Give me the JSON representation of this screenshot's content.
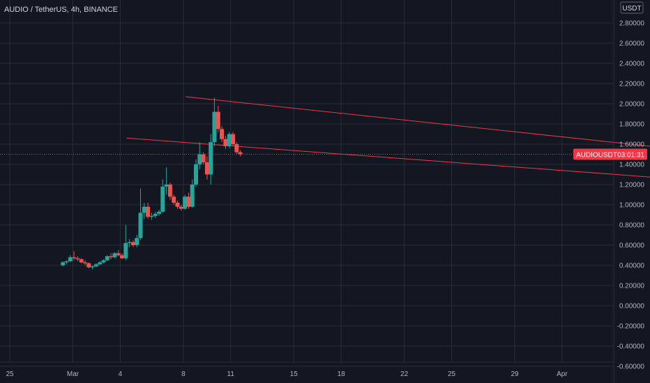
{
  "header": {
    "title": "AUDIO / TetherUS, 4h, BINANCE"
  },
  "price_axis": {
    "currency": "USDT",
    "tick_labels": [
      "2.80000",
      "2.60000",
      "2.40000",
      "2.20000",
      "2.00000",
      "1.80000",
      "1.60000",
      "1.40000",
      "1.20000",
      "1.00000",
      "0.80000",
      "0.60000",
      "0.40000",
      "0.20000",
      "0.00000",
      "-0.20000",
      "-0.40000",
      "-0.60000"
    ]
  },
  "price_tag": {
    "symbol": "AUDIOUSDT",
    "countdown": "03:01:31",
    "color": "#f23645"
  },
  "colors": {
    "up": "#26a69a",
    "down": "#ef5350",
    "channel": "#f23645",
    "background": "#131722",
    "grid": "#2a2e39"
  },
  "chart_data": {
    "type": "candlestick",
    "title": "AUDIO / TetherUS, 4h, BINANCE",
    "interval": "4h",
    "exchange": "BINANCE",
    "ylim": [
      -0.7,
      2.9
    ],
    "y_ticks": [
      2.8,
      2.6,
      2.4,
      2.2,
      2.0,
      1.8,
      1.6,
      1.4,
      1.2,
      1.0,
      0.8,
      0.6,
      0.4,
      0.2,
      0.0,
      -0.2,
      -0.4,
      -0.6
    ],
    "x_tick_labels": [
      "25",
      "Mar",
      "4",
      "8",
      "11",
      "15",
      "18",
      "22",
      "25",
      "29",
      "Apr"
    ],
    "x_tick_dates": [
      "2021-02-25",
      "2021-03-01",
      "2021-03-04",
      "2021-03-08",
      "2021-03-11",
      "2021-03-15",
      "2021-03-18",
      "2021-03-22",
      "2021-03-25",
      "2021-03-29",
      "2021-04-01"
    ],
    "grid": true,
    "last_price": 1.5,
    "channel_upper": [
      [
        1.35,
        2.07
      ],
      [
        5.0,
        1.5
      ]
    ],
    "channel_lower": [
      [
        0.95,
        1.66
      ],
      [
        4.9,
        1.23
      ]
    ],
    "candles": [
      {
        "t": -8.0,
        "o": 0.4,
        "h": 0.44,
        "l": 0.39,
        "c": 0.43
      },
      {
        "t": -7.5,
        "o": 0.43,
        "h": 0.45,
        "l": 0.41,
        "c": 0.44
      },
      {
        "t": -7.0,
        "o": 0.44,
        "h": 0.5,
        "l": 0.43,
        "c": 0.48
      },
      {
        "t": -6.5,
        "o": 0.48,
        "h": 0.54,
        "l": 0.45,
        "c": 0.47
      },
      {
        "t": -6.0,
        "o": 0.47,
        "h": 0.49,
        "l": 0.44,
        "c": 0.46
      },
      {
        "t": -5.5,
        "o": 0.46,
        "h": 0.47,
        "l": 0.42,
        "c": 0.43
      },
      {
        "t": -5.0,
        "o": 0.43,
        "h": 0.45,
        "l": 0.4,
        "c": 0.42
      },
      {
        "t": -4.5,
        "o": 0.42,
        "h": 0.43,
        "l": 0.37,
        "c": 0.38
      },
      {
        "t": -4.0,
        "o": 0.38,
        "h": 0.4,
        "l": 0.36,
        "c": 0.39
      },
      {
        "t": -3.5,
        "o": 0.39,
        "h": 0.42,
        "l": 0.38,
        "c": 0.41
      },
      {
        "t": -3.0,
        "o": 0.41,
        "h": 0.44,
        "l": 0.4,
        "c": 0.43
      },
      {
        "t": -2.5,
        "o": 0.43,
        "h": 0.46,
        "l": 0.42,
        "c": 0.45
      },
      {
        "t": -2.0,
        "o": 0.45,
        "h": 0.5,
        "l": 0.44,
        "c": 0.49
      },
      {
        "t": -1.5,
        "o": 0.49,
        "h": 0.52,
        "l": 0.46,
        "c": 0.48
      },
      {
        "t": -1.0,
        "o": 0.48,
        "h": 0.53,
        "l": 0.47,
        "c": 0.52
      },
      {
        "t": -0.5,
        "o": 0.52,
        "h": 0.55,
        "l": 0.49,
        "c": 0.5
      },
      {
        "t": 0.0,
        "o": 0.5,
        "h": 0.52,
        "l": 0.46,
        "c": 0.47
      },
      {
        "t": 0.5,
        "o": 0.47,
        "h": 0.8,
        "l": 0.45,
        "c": 0.62
      },
      {
        "t": 1.0,
        "o": 0.62,
        "h": 0.66,
        "l": 0.58,
        "c": 0.63
      },
      {
        "t": 1.5,
        "o": 0.63,
        "h": 0.65,
        "l": 0.58,
        "c": 0.6
      },
      {
        "t": 2.0,
        "o": 0.6,
        "h": 0.7,
        "l": 0.58,
        "c": 0.67
      },
      {
        "t": 2.5,
        "o": 0.67,
        "h": 1.16,
        "l": 0.65,
        "c": 0.92
      },
      {
        "t": 3.0,
        "o": 0.92,
        "h": 1.02,
        "l": 0.86,
        "c": 0.98
      },
      {
        "t": 3.5,
        "o": 0.98,
        "h": 1.02,
        "l": 0.86,
        "c": 0.88
      },
      {
        "t": 4.0,
        "o": 0.88,
        "h": 0.92,
        "l": 0.85,
        "c": 0.89
      },
      {
        "t": 4.5,
        "o": 0.89,
        "h": 0.93,
        "l": 0.87,
        "c": 0.91
      },
      {
        "t": 5.0,
        "o": 0.91,
        "h": 0.95,
        "l": 0.89,
        "c": 0.93
      },
      {
        "t": 5.5,
        "o": 0.93,
        "h": 1.25,
        "l": 0.92,
        "c": 1.18
      },
      {
        "t": 6.0,
        "o": 1.18,
        "h": 1.37,
        "l": 1.1,
        "c": 1.2
      },
      {
        "t": 6.5,
        "o": 1.2,
        "h": 1.22,
        "l": 1.05,
        "c": 1.08
      },
      {
        "t": 7.0,
        "o": 1.08,
        "h": 1.1,
        "l": 1.0,
        "c": 1.02
      },
      {
        "t": 7.5,
        "o": 1.02,
        "h": 1.04,
        "l": 0.96,
        "c": 0.98
      },
      {
        "t": 8.0,
        "o": 0.98,
        "h": 1.0,
        "l": 0.94,
        "c": 0.96
      },
      {
        "t": 8.5,
        "o": 0.96,
        "h": 1.1,
        "l": 0.95,
        "c": 1.08
      },
      {
        "t": 9.0,
        "o": 1.08,
        "h": 1.12,
        "l": 0.96,
        "c": 0.98
      },
      {
        "t": 9.5,
        "o": 0.98,
        "h": 1.25,
        "l": 0.97,
        "c": 1.2
      },
      {
        "t": 10.0,
        "o": 1.2,
        "h": 1.45,
        "l": 1.18,
        "c": 1.4
      },
      {
        "t": 10.5,
        "o": 1.4,
        "h": 1.62,
        "l": 1.35,
        "c": 1.5
      },
      {
        "t": 11.0,
        "o": 1.5,
        "h": 1.52,
        "l": 1.4,
        "c": 1.42
      },
      {
        "t": 11.5,
        "o": 1.42,
        "h": 1.48,
        "l": 1.25,
        "c": 1.3
      },
      {
        "t": 12.0,
        "o": 1.3,
        "h": 1.7,
        "l": 1.2,
        "c": 1.62
      },
      {
        "t": 12.5,
        "o": 1.62,
        "h": 2.06,
        "l": 1.58,
        "c": 1.92
      },
      {
        "t": 13.0,
        "o": 1.92,
        "h": 1.98,
        "l": 1.72,
        "c": 1.75
      },
      {
        "t": 13.5,
        "o": 1.75,
        "h": 1.78,
        "l": 1.62,
        "c": 1.65
      },
      {
        "t": 14.0,
        "o": 1.65,
        "h": 1.68,
        "l": 1.55,
        "c": 1.58
      },
      {
        "t": 14.5,
        "o": 1.58,
        "h": 1.72,
        "l": 1.56,
        "c": 1.7
      },
      {
        "t": 15.0,
        "o": 1.7,
        "h": 1.72,
        "l": 1.58,
        "c": 1.6
      },
      {
        "t": 15.5,
        "o": 1.6,
        "h": 1.62,
        "l": 1.5,
        "c": 1.52
      },
      {
        "t": 16.0,
        "o": 1.52,
        "h": 1.54,
        "l": 1.48,
        "c": 1.5
      }
    ]
  }
}
